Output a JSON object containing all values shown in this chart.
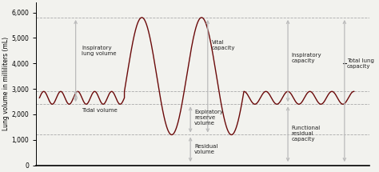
{
  "ylabel": "Lung volume in milliliters (mL)",
  "ylim": [
    0,
    6400
  ],
  "yticks": [
    0,
    1000,
    2000,
    3000,
    4000,
    5000,
    6000
  ],
  "ytick_labels": [
    "0",
    "1,000",
    "2,000",
    "3,000",
    "4,000",
    "5,000",
    "6,000"
  ],
  "dashed_lines": [
    1200,
    2400,
    2900,
    5800
  ],
  "bg_color": "#f2f2ee",
  "wave_color": "#6b0a0a",
  "arrow_color": "#bbbbbb",
  "text_color": "#222222",
  "tidal_min": 2400,
  "tidal_max": 2900,
  "tidal_mid": 2650,
  "residual_vol": 1200,
  "erv_level": 2400,
  "tlc": 5800
}
